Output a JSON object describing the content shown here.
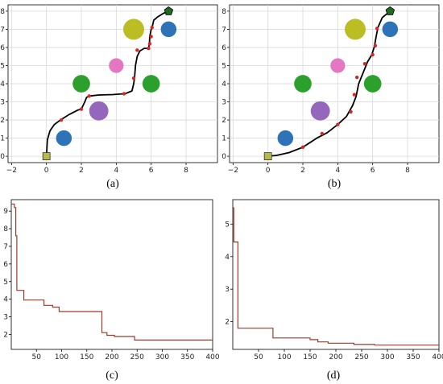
{
  "colors": {
    "start": "#b8b94a",
    "goal": "#1f6b1f",
    "path": "#000000",
    "waypoint": "#d62728",
    "cost_line": "#9b3b2c",
    "grid": "#d9d9d9"
  },
  "chart_data": [
    {
      "type": "scatter",
      "panel": "a",
      "caption": "(a)",
      "xlim": [
        -2.2,
        9.8
      ],
      "ylim": [
        -0.35,
        8.35
      ],
      "xticks": [
        -2,
        0,
        2,
        4,
        6,
        8
      ],
      "yticks": [
        0,
        1,
        2,
        3,
        4,
        5,
        6,
        7,
        8
      ],
      "grid": true,
      "start": {
        "x": 0,
        "y": 0,
        "marker": "square"
      },
      "goal": {
        "x": 7,
        "y": 8,
        "marker": "pentagon"
      },
      "obstacles": [
        {
          "x": 1,
          "y": 1,
          "r": 0.45,
          "color": "#2e72b8"
        },
        {
          "x": 3,
          "y": 2.5,
          "r": 0.55,
          "color": "#9467bd"
        },
        {
          "x": 2,
          "y": 4,
          "r": 0.5,
          "color": "#2ca02c"
        },
        {
          "x": 4,
          "y": 5,
          "r": 0.42,
          "color": "#e377c2"
        },
        {
          "x": 5,
          "y": 7,
          "r": 0.6,
          "color": "#bcbd22"
        },
        {
          "x": 6,
          "y": 4,
          "r": 0.5,
          "color": "#2ca02c"
        },
        {
          "x": 7,
          "y": 7,
          "r": 0.45,
          "color": "#2e72b8"
        }
      ],
      "path_x": [
        0,
        0.05,
        0.2,
        0.45,
        0.8,
        1.3,
        1.8,
        2.0,
        2.2,
        2.3,
        2.45,
        3.0,
        3.8,
        4.5,
        4.9,
        5.0,
        5.05,
        5.1,
        5.2,
        5.35,
        5.6,
        5.85,
        5.9,
        5.92,
        6.0,
        6.05,
        6.15,
        6.4,
        6.7,
        7.0
      ],
      "path_y": [
        0,
        0.9,
        1.4,
        1.75,
        2.0,
        2.3,
        2.55,
        2.6,
        3.0,
        3.25,
        3.32,
        3.38,
        3.4,
        3.45,
        3.6,
        4.0,
        4.35,
        5.0,
        5.5,
        5.8,
        5.95,
        5.95,
        6.2,
        6.6,
        7.0,
        7.1,
        7.5,
        7.7,
        7.88,
        8.0
      ],
      "waypoints_x": [
        0.85,
        2.0,
        2.45,
        4.45,
        5.0,
        5.2,
        5.85,
        5.92,
        6.0,
        6.05
      ],
      "waypoints_y": [
        2.0,
        2.6,
        3.32,
        3.45,
        4.3,
        5.85,
        5.95,
        6.2,
        6.6,
        7.1
      ]
    },
    {
      "type": "scatter",
      "panel": "b",
      "caption": "(b)",
      "xlim": [
        -2.2,
        9.8
      ],
      "ylim": [
        -0.35,
        8.35
      ],
      "xticks": [
        -2,
        0,
        2,
        4,
        6,
        8
      ],
      "yticks": [
        0,
        1,
        2,
        3,
        4,
        5,
        6,
        7,
        8
      ],
      "grid": true,
      "start": {
        "x": 0,
        "y": 0,
        "marker": "square"
      },
      "goal": {
        "x": 7,
        "y": 8,
        "marker": "pentagon"
      },
      "obstacles": [
        {
          "x": 1,
          "y": 1,
          "r": 0.45,
          "color": "#2e72b8"
        },
        {
          "x": 3,
          "y": 2.5,
          "r": 0.55,
          "color": "#9467bd"
        },
        {
          "x": 2,
          "y": 4,
          "r": 0.5,
          "color": "#2ca02c"
        },
        {
          "x": 4,
          "y": 5,
          "r": 0.42,
          "color": "#e377c2"
        },
        {
          "x": 5,
          "y": 7,
          "r": 0.6,
          "color": "#bcbd22"
        },
        {
          "x": 6,
          "y": 4,
          "r": 0.5,
          "color": "#2ca02c"
        },
        {
          "x": 7,
          "y": 7,
          "r": 0.45,
          "color": "#2e72b8"
        }
      ],
      "path_x": [
        0,
        0.5,
        1.2,
        2.0,
        2.8,
        3.4,
        4.0,
        4.5,
        4.85,
        5.05,
        5.2,
        5.45,
        5.7,
        5.95,
        6.1,
        6.2,
        6.3,
        6.55,
        7.0
      ],
      "path_y": [
        0,
        0.05,
        0.2,
        0.5,
        1.0,
        1.3,
        1.75,
        2.2,
        2.8,
        3.3,
        4.0,
        4.6,
        5.2,
        5.6,
        6.05,
        6.6,
        7.1,
        7.65,
        8.0
      ],
      "waypoints_x": [
        2.0,
        3.1,
        4.0,
        4.75,
        4.95,
        5.1,
        5.55,
        6.0,
        6.15,
        6.25
      ],
      "waypoints_y": [
        0.5,
        1.25,
        1.75,
        2.45,
        3.4,
        4.35,
        5.1,
        5.6,
        6.1,
        7.05
      ]
    },
    {
      "type": "line",
      "panel": "c",
      "caption": "(c)",
      "xlim": [
        0,
        400
      ],
      "ylim": [
        1.15,
        9.65
      ],
      "xticks": [
        50,
        100,
        150,
        200,
        250,
        300,
        350,
        400
      ],
      "yticks": [
        2,
        3,
        4,
        5,
        6,
        7,
        8,
        9
      ],
      "grid": false,
      "series": [
        {
          "values": [
            [
              1,
              9.4
            ],
            [
              6,
              9.4
            ],
            [
              6,
              9.2
            ],
            [
              9,
              9.2
            ],
            [
              9,
              7.6
            ],
            [
              11,
              7.6
            ],
            [
              11,
              4.5
            ],
            [
              25,
              4.5
            ],
            [
              25,
              3.95
            ],
            [
              65,
              3.95
            ],
            [
              65,
              3.65
            ],
            [
              82,
              3.65
            ],
            [
              82,
              3.55
            ],
            [
              95,
              3.55
            ],
            [
              95,
              3.3
            ],
            [
              180,
              3.3
            ],
            [
              180,
              2.1
            ],
            [
              190,
              2.1
            ],
            [
              190,
              1.95
            ],
            [
              205,
              1.95
            ],
            [
              205,
              1.88
            ],
            [
              245,
              1.88
            ],
            [
              245,
              1.68
            ],
            [
              400,
              1.68
            ]
          ]
        }
      ]
    },
    {
      "type": "line",
      "panel": "d",
      "caption": "(d)",
      "xlim": [
        0,
        400
      ],
      "ylim": [
        1.15,
        5.75
      ],
      "xticks": [
        50,
        100,
        150,
        200,
        250,
        300,
        350,
        400
      ],
      "yticks": [
        2,
        3,
        4,
        5
      ],
      "grid": false,
      "series": [
        {
          "values": [
            [
              1,
              5.5
            ],
            [
              2,
              5.5
            ],
            [
              2,
              4.45
            ],
            [
              10,
              4.45
            ],
            [
              10,
              1.8
            ],
            [
              78,
              1.8
            ],
            [
              78,
              1.5
            ],
            [
              150,
              1.5
            ],
            [
              150,
              1.45
            ],
            [
              165,
              1.45
            ],
            [
              165,
              1.38
            ],
            [
              185,
              1.38
            ],
            [
              185,
              1.34
            ],
            [
              235,
              1.34
            ],
            [
              235,
              1.3
            ],
            [
              275,
              1.3
            ],
            [
              275,
              1.28
            ],
            [
              400,
              1.28
            ]
          ]
        }
      ]
    }
  ]
}
